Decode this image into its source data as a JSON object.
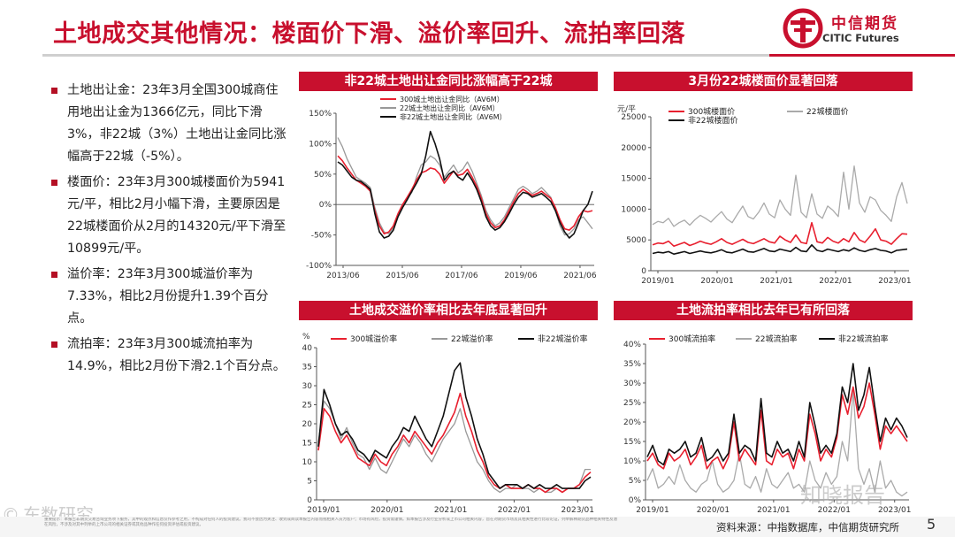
{
  "title": "土地成交其他情况：楼面价下滑、溢价率回升、流拍率回落",
  "logo": {
    "cn": "中信期货",
    "en": "CITIC Futures"
  },
  "colors": {
    "accent": "#c8102e",
    "dark": "#000000",
    "gray": "#999999"
  },
  "bullets": [
    "土地出让金：23年3月全国300城商住用地出让金为1366亿元，同比下滑3%，非22城（3%）土地出让金同比涨幅高于22城（-5%）。",
    "楼面价：23年3月300城楼面价为5941元/平，相比2月小幅下滑，主要原因是22城楼面价从2月的14320元/平下滑至10899元/平。",
    "溢价率：23年3月300城溢价率为7.33%，相比2月份提升1.39个百分点。",
    "流拍率：23年3月300城流拍率为14.9%，相比2月份下滑2.1个百分点。"
  ],
  "charts": {
    "c1": {
      "title": "非22城土地出让金同比涨幅高于22城"
    },
    "c2": {
      "title": "3月份22城楼面价显著回落"
    },
    "c3": {
      "title": "土地成交溢价率相比去年底显著回升"
    },
    "c4": {
      "title": "土地流拍率相比去年已有所回落"
    }
  },
  "chart_data": [
    {
      "type": "line",
      "title": "非22城土地出让金同比涨幅高于22城",
      "ylim": [
        -100,
        150
      ],
      "yticks": [
        "150%",
        "100%",
        "50%",
        "0%",
        "-50%",
        "-100%"
      ],
      "xticks": [
        "2013/06",
        "2015/06",
        "2017/06",
        "2019/06",
        "2021/06"
      ],
      "series": [
        {
          "name": "300城土地出让金同比（AV6M）",
          "color": "#e8202f",
          "values": [
            80,
            72,
            60,
            50,
            40,
            35,
            30,
            22,
            -10,
            -35,
            -48,
            -45,
            -35,
            -15,
            0,
            12,
            25,
            40,
            52,
            55,
            60,
            58,
            50,
            35,
            45,
            55,
            48,
            50,
            58,
            45,
            30,
            10,
            -15,
            -30,
            -38,
            -35,
            -25,
            -10,
            5,
            18,
            25,
            20,
            15,
            18,
            22,
            16,
            10,
            -5,
            -25,
            -40,
            -42,
            -35,
            -20,
            -10,
            -12,
            -10
          ]
        },
        {
          "name": "22城土地出让金同比（AV6M）",
          "color": "#999999",
          "values": [
            110,
            95,
            75,
            60,
            45,
            40,
            35,
            28,
            -5,
            -30,
            -45,
            -48,
            -38,
            -20,
            -2,
            10,
            20,
            45,
            65,
            70,
            80,
            75,
            65,
            45,
            55,
            65,
            52,
            58,
            70,
            55,
            35,
            15,
            -10,
            -25,
            -35,
            -30,
            -20,
            -5,
            10,
            25,
            30,
            25,
            18,
            22,
            28,
            20,
            12,
            -10,
            -35,
            -50,
            -48,
            -40,
            -25,
            -20,
            -30,
            -40
          ]
        },
        {
          "name": "非22城土地出让金同比（AV6M）",
          "color": "#111111",
          "values": [
            70,
            65,
            55,
            45,
            40,
            38,
            32,
            25,
            -15,
            -45,
            -55,
            -52,
            -42,
            -20,
            -5,
            8,
            22,
            35,
            50,
            80,
            120,
            100,
            75,
            40,
            50,
            55,
            45,
            40,
            52,
            40,
            25,
            5,
            -20,
            -35,
            -42,
            -38,
            -28,
            -15,
            0,
            12,
            20,
            18,
            12,
            15,
            18,
            12,
            5,
            -10,
            -30,
            -45,
            -55,
            -48,
            -30,
            -10,
            0,
            22
          ]
        }
      ]
    },
    {
      "type": "line",
      "title": "3月份22城楼面价显著回落",
      "ylabel": "元/平",
      "ylim": [
        0,
        25000
      ],
      "yticks": [
        "25000",
        "20000",
        "15000",
        "10000",
        "5000",
        "0"
      ],
      "xticks": [
        "2019/01",
        "2020/01",
        "2021/01",
        "2022/01",
        "2023/01"
      ],
      "series": [
        {
          "name": "300城楼面价",
          "color": "#e8202f",
          "values": [
            4200,
            4500,
            4400,
            4800,
            4000,
            4300,
            4600,
            4100,
            4400,
            4800,
            4500,
            4300,
            4700,
            5200,
            4600,
            4300,
            4700,
            5100,
            4600,
            4400,
            4800,
            5200,
            4700,
            4500,
            5600,
            5000,
            4600,
            5800,
            4600,
            4400,
            7800,
            4700,
            4500,
            5400,
            4800,
            4500,
            5200,
            4700,
            6200,
            5000,
            4600,
            5600,
            6800,
            5000,
            4800,
            4300,
            5200,
            6000,
            5941
          ]
        },
        {
          "name": "22城楼面价",
          "color": "#aaaaaa",
          "values": [
            7500,
            8000,
            7800,
            8500,
            7200,
            7800,
            8200,
            7400,
            8300,
            9000,
            8500,
            7900,
            8800,
            9600,
            8400,
            7800,
            9200,
            10500,
            8800,
            8400,
            9500,
            11000,
            9200,
            8600,
            11500,
            10000,
            9000,
            15500,
            9500,
            8600,
            12500,
            9200,
            8500,
            10500,
            9800,
            8800,
            16000,
            10000,
            17000,
            11000,
            9500,
            12000,
            11500,
            9800,
            9000,
            8000,
            12000,
            14320,
            10899
          ]
        },
        {
          "name": "非22城楼面价",
          "color": "#111111",
          "values": [
            2800,
            3000,
            2900,
            3100,
            2700,
            2900,
            3100,
            2800,
            3000,
            3200,
            3000,
            2900,
            3100,
            3400,
            3000,
            2900,
            3200,
            3500,
            3100,
            3000,
            3300,
            3600,
            3200,
            3100,
            3500,
            3300,
            3100,
            3800,
            3200,
            3100,
            4200,
            3300,
            3100,
            3500,
            3300,
            3100,
            3400,
            3200,
            3700,
            3300,
            3100,
            3400,
            3600,
            3300,
            3200,
            2900,
            3300,
            3400,
            3500
          ]
        }
      ]
    },
    {
      "type": "line",
      "title": "土地成交溢价率相比去年底显著回升",
      "ylabel": "%",
      "ylim": [
        0,
        40
      ],
      "yticks": [
        "40",
        "35",
        "30",
        "25",
        "20",
        "15",
        "10",
        "5",
        "0"
      ],
      "xticks": [
        "2019/01",
        "2020/01",
        "2021/01",
        "2022/01",
        "2023/01"
      ],
      "series": [
        {
          "name": "300城溢价率",
          "color": "#e8202f",
          "values": [
            13,
            24,
            22,
            18,
            15,
            17,
            14,
            11,
            10,
            9,
            12,
            10,
            9,
            12,
            14,
            17,
            15,
            18,
            16,
            14,
            12,
            15,
            17,
            20,
            23,
            28,
            22,
            18,
            13,
            10,
            6,
            4,
            3,
            4,
            3,
            3,
            3,
            4,
            3,
            3,
            2,
            3,
            3,
            2,
            3,
            3,
            4,
            6,
            7.3
          ]
        },
        {
          "name": "22城溢价率",
          "color": "#999999",
          "values": [
            15,
            26,
            24,
            20,
            16,
            19,
            15,
            12,
            11,
            8,
            11,
            8,
            7,
            10,
            13,
            16,
            14,
            17,
            15,
            12,
            10,
            13,
            16,
            18,
            20,
            24,
            18,
            14,
            10,
            8,
            5,
            3,
            2,
            3,
            3,
            4,
            3,
            3,
            2,
            3,
            2,
            2,
            3,
            2,
            3,
            3,
            4,
            8,
            8
          ]
        },
        {
          "name": "非22城溢价率",
          "color": "#111111",
          "values": [
            14,
            29,
            25,
            20,
            17,
            18,
            16,
            13,
            12,
            10,
            13,
            12,
            11,
            14,
            16,
            19,
            18,
            22,
            19,
            16,
            14,
            18,
            22,
            28,
            34,
            36,
            27,
            22,
            16,
            12,
            7,
            5,
            3,
            4,
            4,
            4,
            3,
            4,
            3,
            4,
            3,
            3,
            4,
            3,
            3,
            3,
            3,
            5,
            6
          ]
        }
      ]
    },
    {
      "type": "line",
      "title": "土地流拍率相比去年已有所回落",
      "ylim": [
        0,
        40
      ],
      "yticks": [
        "40%",
        "35%",
        "30%",
        "25%",
        "20%",
        "15%",
        "10%",
        "5%",
        "0%"
      ],
      "xticks": [
        "2019/01",
        "2020/01",
        "2021/01",
        "2022/01",
        "2023/01"
      ],
      "series": [
        {
          "name": "300城流拍率",
          "color": "#e8202f",
          "values": [
            10,
            12,
            9,
            8,
            12,
            10,
            11,
            13,
            9,
            11,
            14,
            8,
            10,
            11,
            8,
            11,
            20,
            10,
            13,
            11,
            9,
            23,
            10,
            9,
            13,
            11,
            12,
            8,
            13,
            10,
            22,
            17,
            10,
            13,
            11,
            16,
            27,
            22,
            29,
            21,
            24,
            30,
            22,
            13,
            19,
            17,
            19,
            17,
            15
          ]
        },
        {
          "name": "22城流拍率",
          "color": "#aaaaaa",
          "values": [
            5,
            8,
            3,
            4,
            6,
            4,
            9,
            5,
            3,
            2,
            4,
            5,
            10,
            4,
            2,
            3,
            5,
            12,
            4,
            3,
            6,
            2,
            8,
            4,
            3,
            5,
            7,
            3,
            4,
            2,
            10,
            5,
            3,
            7,
            4,
            6,
            15,
            10,
            28,
            8,
            4,
            8,
            2,
            10,
            3,
            5,
            2,
            1,
            2
          ]
        },
        {
          "name": "非22城流拍率",
          "color": "#111111",
          "values": [
            11,
            14,
            10,
            9,
            13,
            12,
            13,
            15,
            11,
            12,
            16,
            10,
            11,
            13,
            10,
            12,
            22,
            12,
            14,
            13,
            10,
            26,
            12,
            11,
            15,
            12,
            13,
            10,
            15,
            11,
            25,
            19,
            12,
            14,
            12,
            17,
            29,
            25,
            35,
            23,
            27,
            34,
            24,
            15,
            21,
            18,
            21,
            19,
            16
          ]
        }
      ]
    }
  ],
  "footer": {
    "source": "资料来源：中指数据库，中信期货研究所",
    "page": "5",
    "disclaimer": "重要提示：本报告非期货交易咨询业务项下服务，其中的观点和信息仅作参考之用，不构成对任何人的投资建议。我司不会因为关注、收到或阅读本报告内容而视相关人员为客户；市场有风险，投资需谨慎。如本报告涉及行业分析或上市公司相关内容，旨在对期货市场及其相关性进行比较论证，列举解释期货品种相关特性及潜在风险，不涉及对其中列举的上市公司的相关证券或其他品种作任何投资评估或投资建议。"
  },
  "watermarks": {
    "left": "© 东数研究",
    "right": "知晓报告"
  }
}
